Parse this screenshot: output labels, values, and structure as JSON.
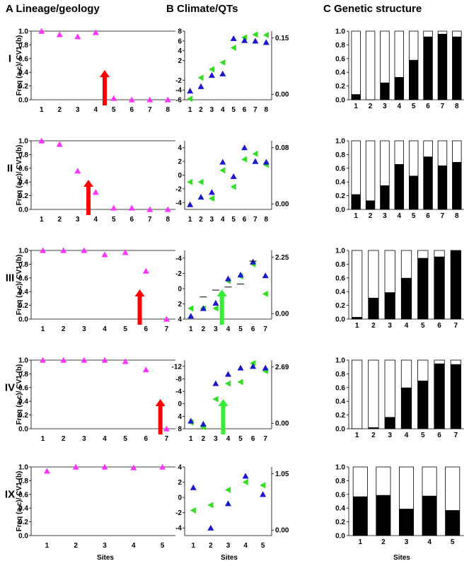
{
  "headers": {
    "a": "A Lineage/geology",
    "b": "B Climate/QTs",
    "c": "C Genetic structure"
  },
  "ylabel": "Freq (a,c)/ CV1 (b)",
  "xlabel": "Sites",
  "colors": {
    "lineage": "#ff33ff",
    "cv1": "#1a1acc",
    "qt": "#33dd22",
    "arrow_red": "#ff0000",
    "arrow_green": "#33ee33",
    "bar": "#000000"
  },
  "chart_data": [
    {
      "row": "I",
      "lineage": {
        "type": "scatter",
        "x": [
          1,
          2,
          3,
          4,
          5,
          6,
          7,
          8
        ],
        "y": [
          1.0,
          0.95,
          0.92,
          0.98,
          0.02,
          0.0,
          0.0,
          0.0
        ],
        "ylim": [
          0,
          1
        ],
        "yticks": [
          "0.0",
          "0.2",
          "0.4",
          "0.6",
          "0.8",
          "1.0"
        ],
        "arrow": {
          "x": 4.5,
          "color": "red"
        }
      },
      "climate": {
        "type": "scatter",
        "x": [
          1,
          2,
          3,
          4,
          5,
          6,
          7,
          8
        ],
        "left": {
          "ylim": [
            -6,
            8
          ],
          "ticks": [
            8,
            6,
            4,
            2,
            -2,
            -4,
            -6
          ],
          "tick_labels": [
            "8",
            "6",
            "4",
            "2",
            "-2",
            "-4",
            "-6"
          ]
        },
        "cv1": [
          -4.2,
          -3.3,
          -1.0,
          -0.7,
          6.5,
          6.1,
          6.0,
          5.7
        ],
        "right": {
          "ticks": [
            0.15,
            0.0
          ],
          "tick_labels": [
            "0.15",
            "0.00"
          ]
        },
        "qt": [
          -5.8,
          -1.5,
          0.2,
          1.6,
          4.6,
          6.7,
          7.3,
          7.2
        ],
        "dashes": []
      },
      "genetic": {
        "type": "bar",
        "x": [
          1,
          2,
          3,
          4,
          5,
          6,
          7,
          8
        ],
        "values": [
          0.08,
          0.0,
          0.25,
          0.33,
          0.58,
          0.92,
          0.96,
          0.92
        ],
        "yticks": [
          "0.0",
          "0.2",
          "0.4",
          "0.6",
          "0.8",
          "1.0"
        ]
      }
    },
    {
      "row": "II",
      "lineage": {
        "type": "scatter",
        "x": [
          1,
          2,
          3,
          4,
          5,
          6,
          7,
          8
        ],
        "y": [
          1.0,
          0.95,
          0.56,
          0.25,
          0.02,
          0.02,
          0.0,
          0.0
        ],
        "ylim": [
          0,
          1
        ],
        "yticks": [
          "0.0",
          "0.2",
          "0.4",
          "0.6",
          "0.8",
          "1.0"
        ],
        "arrow": {
          "x": 3.6,
          "color": "red"
        }
      },
      "climate": {
        "type": "scatter",
        "x": [
          1,
          2,
          3,
          4,
          5,
          6,
          7,
          8
        ],
        "left": {
          "ylim": [
            -5,
            5
          ],
          "ticks": [
            4,
            2,
            0,
            -2,
            -4
          ],
          "tick_labels": [
            "4",
            "2",
            "0",
            "-2",
            "-4"
          ]
        },
        "cv1": [
          -4.3,
          -3.2,
          -2.5,
          1.9,
          -0.2,
          4.0,
          2.0,
          1.9
        ],
        "right": {
          "ticks": [
            0.08,
            0.0
          ],
          "tick_labels": [
            "0.08",
            "0.00"
          ]
        },
        "qt": [
          -1.0,
          -1.0,
          -3.4,
          0.7,
          -1.7,
          2.3,
          3.1,
          1.5
        ],
        "dashes": []
      },
      "genetic": {
        "type": "bar",
        "x": [
          1,
          2,
          3,
          4,
          5,
          6,
          7,
          8
        ],
        "values": [
          0.22,
          0.13,
          0.35,
          0.66,
          0.49,
          0.77,
          0.64,
          0.69
        ],
        "yticks": [
          "0.0",
          "0.2",
          "0.4",
          "0.6",
          "0.8",
          "1.0"
        ]
      }
    },
    {
      "row": "III",
      "lineage": {
        "type": "scatter",
        "x": [
          1,
          2,
          3,
          4,
          5,
          6,
          7
        ],
        "y": [
          1.0,
          1.0,
          1.0,
          0.94,
          0.97,
          0.7,
          0.0
        ],
        "ylim": [
          0,
          1
        ],
        "yticks": [
          "0.0",
          "0.2",
          "0.4",
          "0.6",
          "0.8",
          "1.0"
        ],
        "arrow": {
          "x": 5.7,
          "color": "red"
        }
      },
      "climate": {
        "type": "scatter",
        "x": [
          1,
          2,
          3,
          4,
          5,
          6,
          7
        ],
        "left": {
          "ylim": [
            -5,
            4
          ],
          "ticks": [
            -4,
            -2,
            0,
            2,
            4
          ],
          "tick_labels": [
            "-4",
            "-2",
            "0",
            "2",
            "4"
          ],
          "inverted": true
        },
        "cv1": [
          3.6,
          2.6,
          1.9,
          -1.3,
          -1.8,
          -3.5,
          -1.7
        ],
        "right": {
          "ticks": [
            2.25,
            0.0
          ],
          "tick_labels": [
            "2.25",
            "0.00"
          ]
        },
        "qt": [
          2.6,
          2.6,
          2.6,
          -1.0,
          -1.6,
          -3.2,
          0.7
        ],
        "dashes": [
          1.1,
          0.2,
          -0.2,
          -0.6,
          -3.6
        ],
        "dash_x": [
          2,
          3,
          4,
          5,
          6
        ],
        "arrow": {
          "x": 3.5,
          "color": "green"
        }
      },
      "genetic": {
        "type": "bar",
        "x": [
          1,
          2,
          3,
          4,
          5,
          6,
          7
        ],
        "values": [
          0.03,
          0.31,
          0.39,
          0.6,
          0.89,
          0.91,
          1.0
        ],
        "yticks": [
          "0.0",
          "0.2",
          "0.4",
          "0.6",
          "0.8",
          "1.0"
        ]
      }
    },
    {
      "row": "IV",
      "lineage": {
        "type": "scatter",
        "x": [
          1,
          2,
          3,
          4,
          5,
          6,
          7
        ],
        "y": [
          1.0,
          1.0,
          1.0,
          1.0,
          0.98,
          0.86,
          0.0
        ],
        "ylim": [
          0,
          1
        ],
        "yticks": [
          "0.0",
          "0.2",
          "0.4",
          "0.6",
          "0.8",
          "1.0"
        ],
        "arrow": {
          "x": 6.7,
          "color": "red"
        }
      },
      "climate": {
        "type": "scatter",
        "x": [
          1,
          2,
          3,
          4,
          5,
          6,
          7
        ],
        "left": {
          "ylim": [
            -14,
            8
          ],
          "ticks": [
            -12,
            -8,
            -4,
            0,
            4,
            8
          ],
          "tick_labels": [
            "-12",
            "-8",
            "-4",
            "0",
            "4",
            "8"
          ],
          "inverted": true
        },
        "cv1": [
          5.5,
          6.5,
          -6.5,
          -9.5,
          -11.5,
          -12.0,
          -11.5
        ],
        "right": {
          "ticks": [
            2.69,
            0.0
          ],
          "tick_labels": [
            "2.69",
            "0.00"
          ]
        },
        "qt": [
          6.0,
          7.5,
          -1.5,
          -6.5,
          -7.0,
          -13.0,
          -10.5
        ],
        "dashes": [],
        "arrow": {
          "x": 3.6,
          "color": "green"
        }
      },
      "genetic": {
        "type": "bar",
        "x": [
          1,
          2,
          3,
          4,
          5,
          6,
          7
        ],
        "values": [
          0.0,
          0.02,
          0.17,
          0.6,
          0.7,
          0.95,
          0.94
        ],
        "yticks": [
          "0.0",
          "0.2",
          "0.4",
          "0.6",
          "0.8",
          "1.0"
        ]
      }
    },
    {
      "row": "IX",
      "lineage": {
        "type": "scatter",
        "x": [
          1,
          2,
          3,
          4,
          5
        ],
        "y": [
          0.94,
          1.0,
          1.0,
          0.99,
          1.0
        ],
        "ylim": [
          0,
          1
        ],
        "yticks": [
          "0.0",
          "0.2",
          "0.4",
          "0.6",
          "0.8",
          "1.0"
        ]
      },
      "climate": {
        "type": "scatter",
        "x": [
          1,
          2,
          3,
          4,
          5
        ],
        "left": {
          "ylim": [
            -5,
            4
          ],
          "ticks": [
            4,
            2,
            0,
            -2,
            -4
          ],
          "tick_labels": [
            "4",
            "2",
            "0",
            "-2",
            "-4"
          ]
        },
        "cv1": [
          1.3,
          -4.0,
          -0.8,
          2.8,
          0.4
        ],
        "right": {
          "ticks": [
            1.05,
            0.0
          ],
          "tick_labels": [
            "1.05",
            "0.00"
          ]
        },
        "qt": [
          -1.7,
          -1.0,
          1.0,
          2.0,
          1.6
        ],
        "dashes": []
      },
      "genetic": {
        "type": "bar",
        "x": [
          1,
          2,
          3,
          4,
          5
        ],
        "values": [
          0.57,
          0.59,
          0.39,
          0.58,
          0.37
        ],
        "yticks": [
          "0.0",
          "0.2",
          "0.4",
          "0.6",
          "0.8",
          "1.0"
        ]
      }
    }
  ]
}
